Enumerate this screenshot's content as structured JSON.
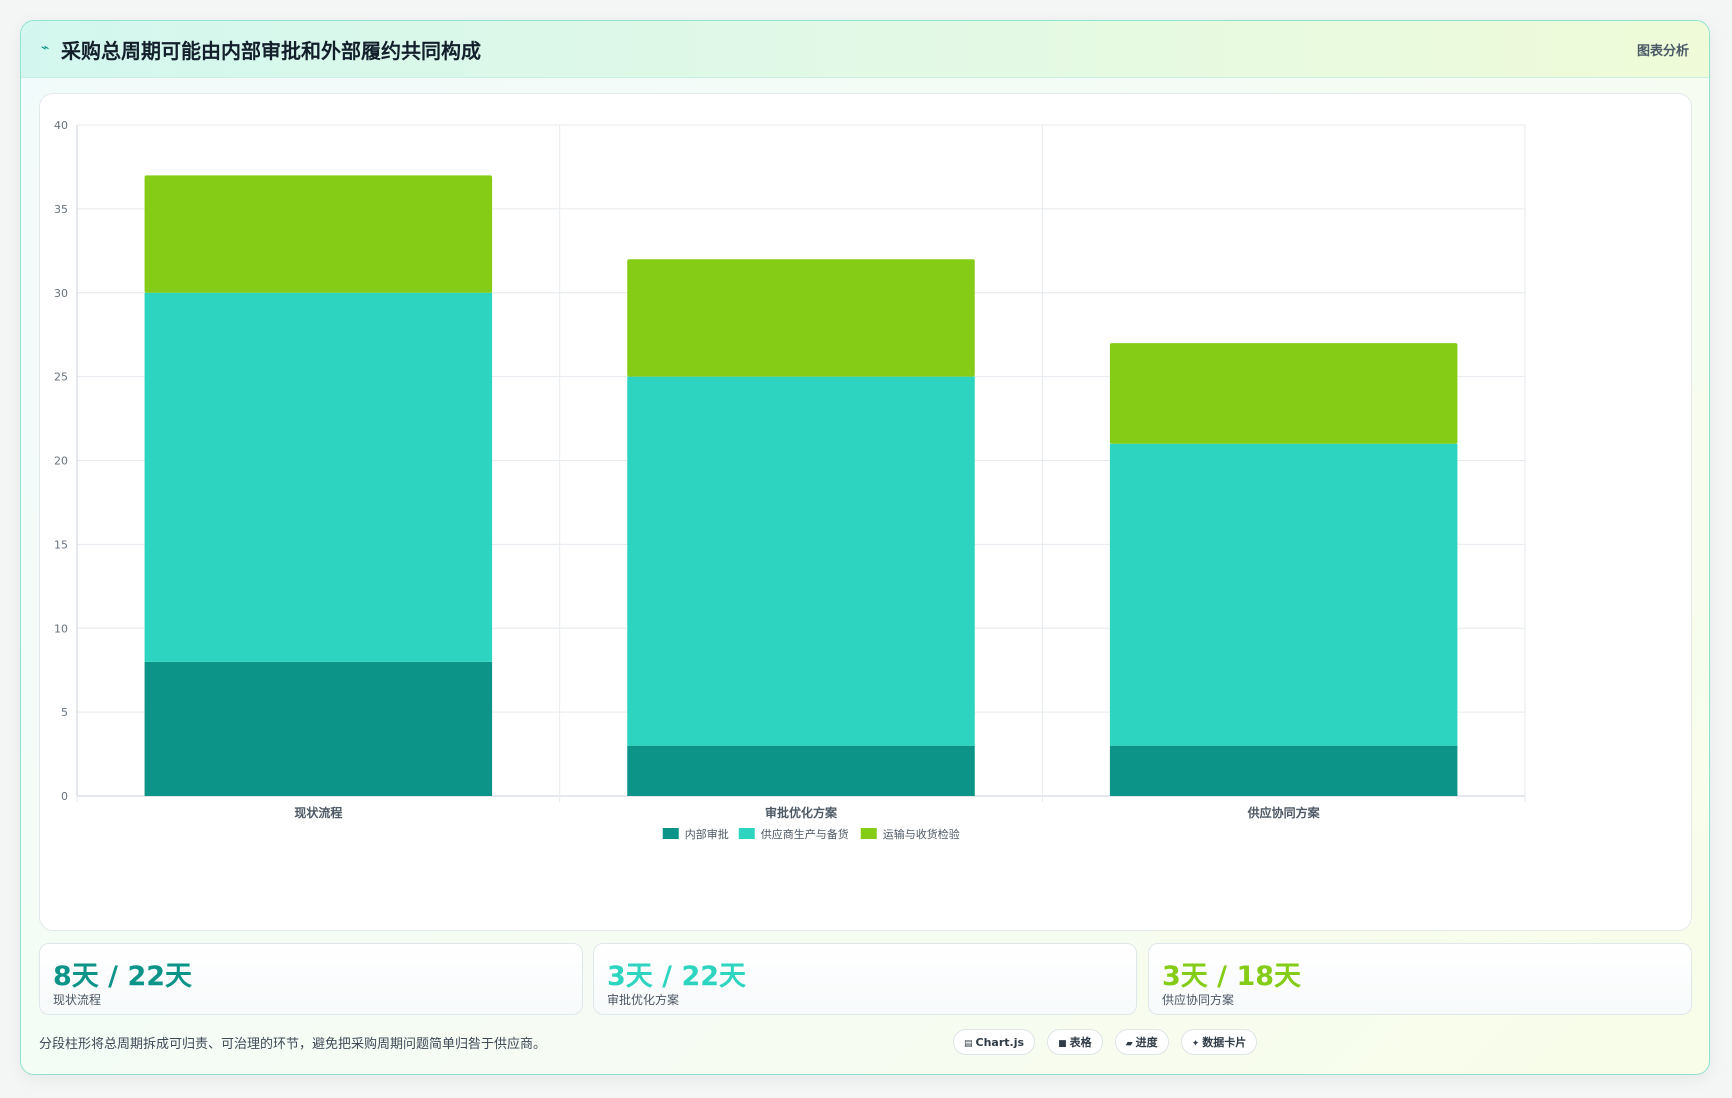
{
  "header": {
    "icon": "chart-line-icon",
    "title": "采购总周期可能由内部审批和外部履约共同构成",
    "tag": "图表分析"
  },
  "chart_data": {
    "type": "bar",
    "stacked": true,
    "categories": [
      "现状流程",
      "审批优化方案",
      "供应协同方案"
    ],
    "series": [
      {
        "name": "内部审批",
        "color": "#0d9488",
        "values": [
          8,
          3,
          3
        ]
      },
      {
        "name": "供应商生产与备货",
        "color": "#2dd4bf",
        "values": [
          22,
          22,
          18
        ]
      },
      {
        "name": "运输与收货检验",
        "color": "#84cc16",
        "values": [
          7,
          7,
          6
        ]
      }
    ],
    "ylim": [
      0,
      40
    ],
    "yticks": [
      0,
      5,
      10,
      15,
      20,
      25,
      30,
      35,
      40
    ],
    "grid": true,
    "legend": "bottom-center"
  },
  "kpis": [
    {
      "value": "8天 / 22天",
      "label": "现状流程",
      "color": "#0d9488"
    },
    {
      "value": "3天 / 22天",
      "label": "审批优化方案",
      "color": "#2dd4bf"
    },
    {
      "value": "3天 / 18天",
      "label": "供应协同方案",
      "color": "#84cc16"
    }
  ],
  "footer": {
    "note": "分段柱形将总周期拆成可归责、可治理的环节，避免把采购周期问题简单归咎于供应商。",
    "chips": [
      {
        "icon": "chart-icon",
        "label": "Chart.js"
      },
      {
        "icon": "table-icon",
        "label": "表格"
      },
      {
        "icon": "progress-icon",
        "label": "进度"
      },
      {
        "icon": "sparkle-icon",
        "label": "数据卡片"
      }
    ]
  }
}
